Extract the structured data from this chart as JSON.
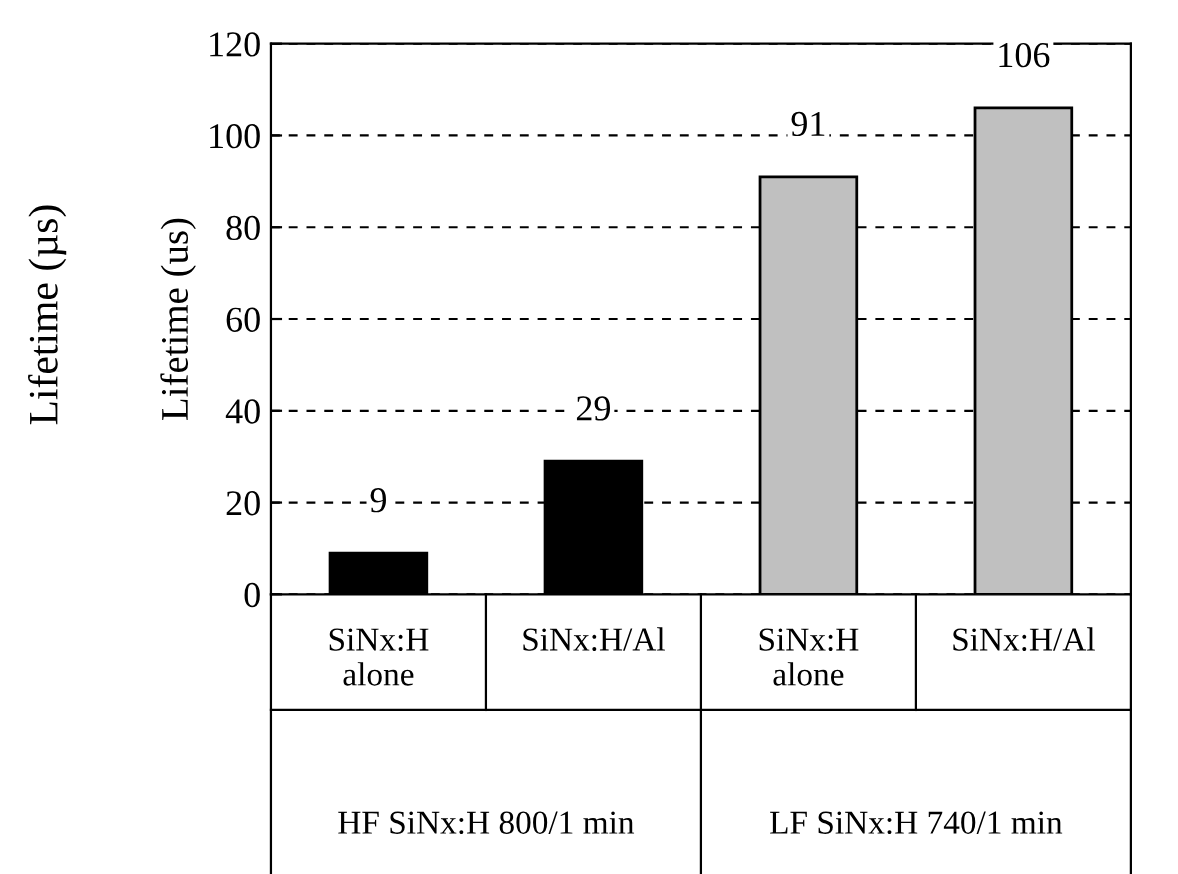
{
  "chart_data": {
    "type": "bar",
    "categories": [
      "SiNx:H\nalone",
      "SiNx:H/Al",
      "SiNx:H\nalone",
      "SiNx:H/Al"
    ],
    "values": [
      9,
      29,
      91,
      106
    ],
    "colors": [
      "#000000",
      "#000000",
      "#c0c0c0",
      "#c0c0c0"
    ],
    "ylabel": "Lifetime (us)",
    "annotations": [
      "Lifetime (µs)",
      "HF SiNx:H 800/1 min",
      "LF SiNx:H 740/1 min"
    ],
    "ylim": [
      0,
      120
    ],
    "yticks": [
      0,
      20,
      40,
      60,
      80,
      100,
      120
    ],
    "grid": "y",
    "data_labels": true
  }
}
